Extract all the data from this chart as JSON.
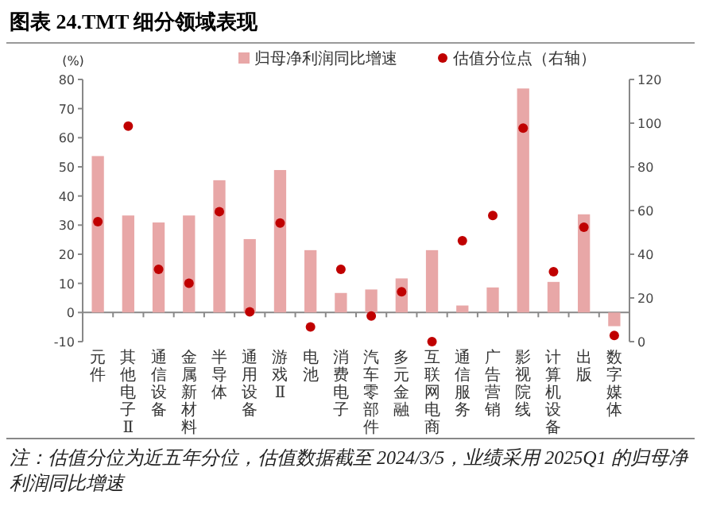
{
  "chart_data": {
    "type": "bar",
    "title": "图表 24.TMT 细分领域表现",
    "ylabel": "(%)",
    "categories": [
      "元件",
      "其他电子Ⅱ",
      "通信设备",
      "金属新材料",
      "半导体",
      "通用设备",
      "游戏Ⅱ",
      "电池",
      "消费电子",
      "汽车零部件",
      "多元金融",
      "互联网电商",
      "通信服务",
      "广告营销",
      "影视院线",
      "计算机设备",
      "出版",
      "数字媒体"
    ],
    "series": [
      {
        "name": "归母净利润同比增速",
        "color": "#e8a7a7",
        "values": [
          53.7,
          33.3,
          30.9,
          33.3,
          45.4,
          25.2,
          48.9,
          21.4,
          6.7,
          7.9,
          11.7,
          21.4,
          2.4,
          8.6,
          76.9,
          10.5,
          33.7,
          -4.7
        ]
      },
      {
        "name": "估值分位点（右轴）",
        "type": "scatter",
        "axis": "y2",
        "color": "#c00000",
        "marker": "circle",
        "values": [
          54.9,
          98.6,
          33.1,
          26.7,
          59.5,
          13.6,
          54.3,
          6.7,
          33.1,
          11.7,
          22.8,
          0,
          46.2,
          57.7,
          97.7,
          32.0,
          52.4,
          2.8
        ]
      }
    ],
    "ylim": [
      -10,
      80
    ],
    "yticks": [
      -10,
      0,
      10,
      20,
      30,
      40,
      50,
      60,
      70,
      80
    ],
    "y2lim": [
      0,
      120
    ],
    "y2ticks": [
      0,
      20,
      40,
      60,
      80,
      100,
      120
    ],
    "legend": "top",
    "grid": false,
    "annotations": [
      "注：估值分位为近五年分位，估值数据截至 2024/3/5，业绩采用 2025Q1 的归母净利润同比增速"
    ]
  }
}
